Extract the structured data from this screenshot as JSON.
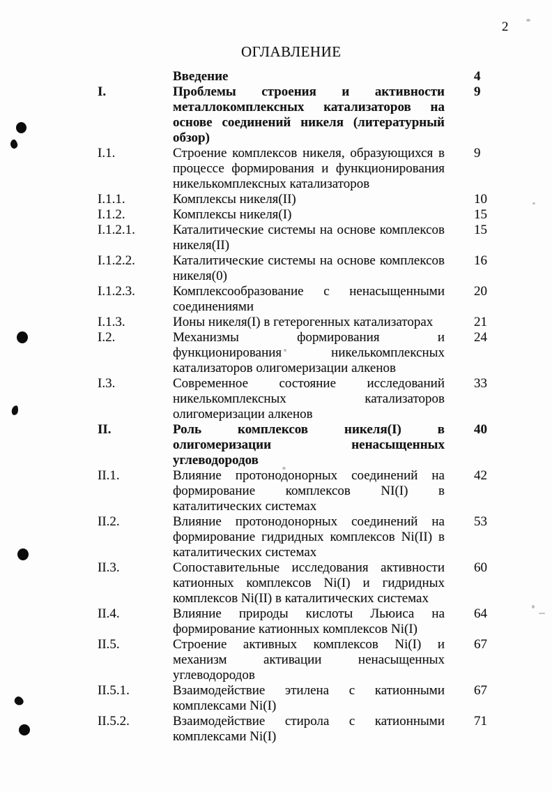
{
  "page": {
    "folio": "2",
    "title": "ОГЛАВЛЕНИЕ"
  },
  "toc": {
    "entries": [
      {
        "num": "",
        "title": "Введение",
        "page": "4",
        "bold": true
      },
      {
        "num": "I.",
        "title": "Проблемы строения и активности металлокомплексных катализаторов на основе соединений никеля (литературный обзор)",
        "page": "9",
        "bold": true
      },
      {
        "num": "I.1.",
        "title": "Строение комплексов никеля, образующихся в процессе формирования и функционирования никелькомплексных катализаторов",
        "page": "9",
        "bold": false
      },
      {
        "num": "I.1.1.",
        "title": "Комплексы никеля(II)",
        "page": "10",
        "bold": false
      },
      {
        "num": "I.1.2.",
        "title": "Комплексы никеля(I)",
        "page": "15",
        "bold": false
      },
      {
        "num": "I.1.2.1.",
        "title": "Каталитические системы на основе комплексов никеля(II)",
        "page": "15",
        "bold": false
      },
      {
        "num": "I.1.2.2.",
        "title": "Каталитические системы на основе комплексов никеля(0)",
        "page": "16",
        "bold": false
      },
      {
        "num": "I.1.2.3.",
        "title": "Комплексообразование с ненасыщенными соединениями",
        "page": "20",
        "bold": false
      },
      {
        "num": "I.1.3.",
        "title": "Ионы никеля(I) в гетерогенных катализаторах",
        "page": "21",
        "bold": false
      },
      {
        "num": "I.2.",
        "title": "Механизмы формирования и функционирования никелькомплексных катализаторов олигомеризации алкенов",
        "page": "24",
        "bold": false
      },
      {
        "num": "I.3.",
        "title": "Современное состояние исследований никелькомплексных катализаторов олигомеризации алкенов",
        "page": "33",
        "bold": false
      },
      {
        "num": "II.",
        "title": "Роль комплексов никеля(I) в олигомеризации ненасыщенных углеводородов",
        "page": "40",
        "bold": true
      },
      {
        "num": "II.1.",
        "title": "Влияние протонодонорных соединений на формирование комплексов NI(I) в каталитических системах",
        "page": "42",
        "bold": false
      },
      {
        "num": "II.2.",
        "title": "Влияние протонодонорных соединений на формирование гидридных комплексов Ni(II) в каталитических системах",
        "page": "53",
        "bold": false
      },
      {
        "num": "II.3.",
        "title": "Сопоставительные исследования активности катионных комплексов Ni(I) и гидридных комплексов Ni(II) в каталитических системах",
        "page": "60",
        "bold": false
      },
      {
        "num": "II.4.",
        "title": "Влияние природы кислоты Льюиса на формирование катионных комплексов Ni(I)",
        "page": "64",
        "bold": false
      },
      {
        "num": "II.5.",
        "title": "Строение активных комплексов Ni(I) и механизм активации ненасыщенных углеводородов",
        "page": "67",
        "bold": false
      },
      {
        "num": "II.5.1.",
        "title": "Взаимодействие этилена с катионными комплексами Ni(I)",
        "page": "67",
        "bold": false
      },
      {
        "num": "II.5.2.",
        "title": "Взаимодействие стирола с катионными комплексами Ni(I)",
        "page": "71",
        "bold": false
      }
    ]
  },
  "colors": {
    "ink": "#151515",
    "paper": "#fdfdfd"
  }
}
